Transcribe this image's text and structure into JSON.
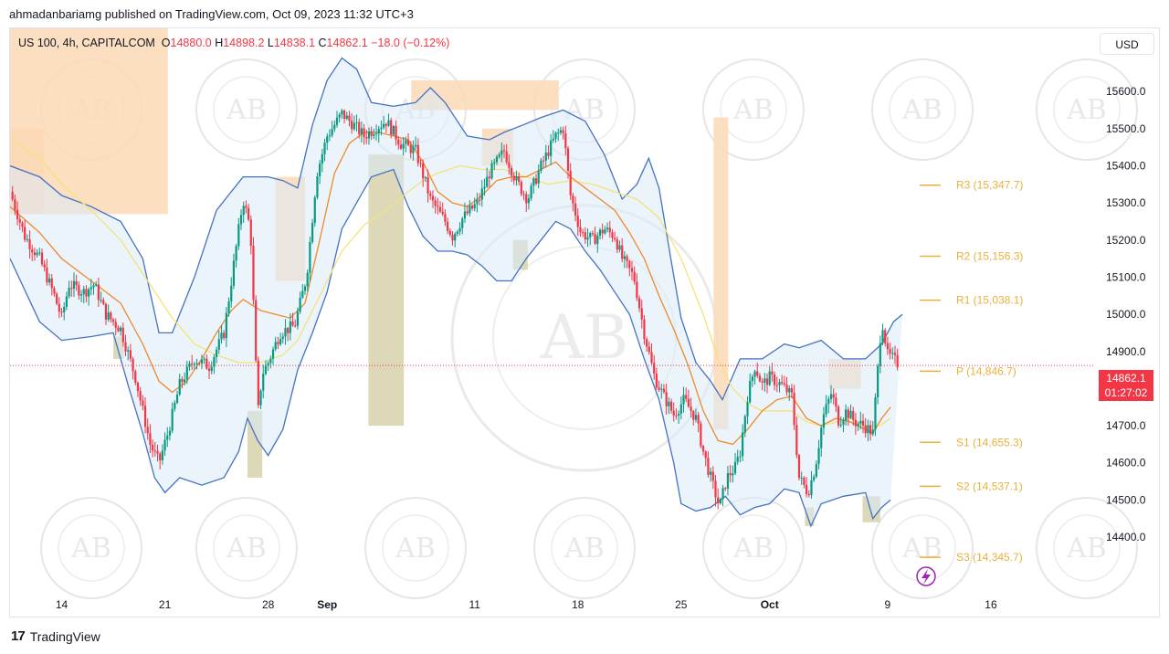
{
  "header": {
    "published_line": "ahmadanbariamg published on TradingView.com, Oct 09, 2023 11:32 UTC+3"
  },
  "symbol": {
    "name": "US 100, 4h, CAPITALCOM",
    "open_label": "O",
    "open": "14880.0",
    "high_label": "H",
    "high": "14898.2",
    "low_label": "L",
    "low": "14838.1",
    "close_label": "C",
    "close": "14862.1",
    "change": "−18.0 (−0.12%)"
  },
  "currency_button": "USD",
  "price_tag": {
    "price": "14862.1",
    "countdown": "01:27:02"
  },
  "footer": {
    "brand": "TradingView",
    "logo": "17"
  },
  "watermark": {
    "text": "AB",
    "ring_text": "ARABIAN BUSINESS ACADEMY"
  },
  "colors": {
    "up": "#089981",
    "down": "#f23645",
    "bb_line": "#4472c4",
    "bb_fill": "#dbe9f8",
    "ema_orange": "#ef8a2c",
    "ma_yellow": "#f5e27a",
    "supply_zone": "#fcd9b6",
    "demand_zone": "#d8d4b0",
    "pivot": "#e8b13c",
    "lightning": "#9c27b0"
  },
  "chart_data": {
    "type": "candlestick",
    "title": "",
    "xlabel": "",
    "ylabel": "",
    "ylim": [
      14260,
      15770
    ],
    "yticks": [
      "15600.0",
      "15500.0",
      "15400.0",
      "15300.0",
      "15200.0",
      "15100.0",
      "15000.0",
      "14900.0",
      "14800.0",
      "14700.0",
      "14600.0",
      "14500.0",
      "14400.0"
    ],
    "ytick_values": [
      15600,
      15500,
      15400,
      15300,
      15200,
      15100,
      15000,
      14900,
      14800,
      14700,
      14600,
      14500,
      14400
    ],
    "xticks": [
      {
        "label": "14",
        "day": 1
      },
      {
        "label": "21",
        "day": 8
      },
      {
        "label": "28",
        "day": 15
      },
      {
        "label": "Sep",
        "day": 19,
        "bold": true
      },
      {
        "label": "11",
        "day": 29
      },
      {
        "label": "18",
        "day": 36
      },
      {
        "label": "25",
        "day": 43
      },
      {
        "label": "Oct",
        "day": 49,
        "bold": true
      },
      {
        "label": "9",
        "day": 57
      },
      {
        "label": "16",
        "day": 64
      }
    ],
    "xlim": [
      -2.5,
      71.0
    ],
    "last_price": 14862.1,
    "pivots": [
      {
        "label": "R3 (15,347.7)",
        "value": 15347.7
      },
      {
        "label": "R2 (15,156.3)",
        "value": 15156.3
      },
      {
        "label": "R1 (15,038.1)",
        "value": 15038.1
      },
      {
        "label": "P (14,846.7)",
        "value": 14846.7
      },
      {
        "label": "S1 (14,655.3)",
        "value": 14655.3
      },
      {
        "label": "S2 (14,537.1)",
        "value": 14537.1
      },
      {
        "label": "S3 (14,345.7)",
        "value": 14345.7
      }
    ],
    "zones": [
      {
        "kind": "supply",
        "x0": -2.5,
        "x1": 8.2,
        "y0": 15270,
        "y1": 15770
      },
      {
        "kind": "supply",
        "x0": -2.5,
        "x1": -0.2,
        "y0": 15270,
        "y1": 15500
      },
      {
        "kind": "supply",
        "x0": 15.5,
        "x1": 17.5,
        "y0": 15090,
        "y1": 15370
      },
      {
        "kind": "supply",
        "x0": 24.7,
        "x1": 34.7,
        "y0": 15550,
        "y1": 15630
      },
      {
        "kind": "supply",
        "x0": 29.5,
        "x1": 31.6,
        "y0": 15400,
        "y1": 15500
      },
      {
        "kind": "supply",
        "x0": 45.2,
        "x1": 46.2,
        "y0": 14690,
        "y1": 15530
      },
      {
        "kind": "supply",
        "x0": 53.0,
        "x1": 55.2,
        "y0": 14800,
        "y1": 14880
      },
      {
        "kind": "demand",
        "x0": 4.5,
        "x1": 5.2,
        "y0": 14880,
        "y1": 14940
      },
      {
        "kind": "demand",
        "x0": 13.6,
        "x1": 14.6,
        "y0": 14560,
        "y1": 14740
      },
      {
        "kind": "demand",
        "x0": 21.8,
        "x1": 24.2,
        "y0": 14700,
        "y1": 15430
      },
      {
        "kind": "demand",
        "x0": 31.6,
        "x1": 32.6,
        "y0": 15120,
        "y1": 15200
      },
      {
        "kind": "demand",
        "x0": 51.4,
        "x1": 52.0,
        "y0": 14430,
        "y1": 14480
      },
      {
        "kind": "demand",
        "x0": 55.3,
        "x1": 56.5,
        "y0": 14440,
        "y1": 14510
      }
    ],
    "close_path": [
      [
        -2.5,
        15330
      ],
      [
        -1.5,
        15210
      ],
      [
        -0.5,
        15150
      ],
      [
        0.5,
        15050
      ],
      [
        1.0,
        14990
      ],
      [
        1.5,
        15080
      ],
      [
        2.5,
        15060
      ],
      [
        3.2,
        15080
      ],
      [
        4.0,
        15000
      ],
      [
        5.0,
        14960
      ],
      [
        6.0,
        14830
      ],
      [
        7.0,
        14650
      ],
      [
        7.6,
        14600
      ],
      [
        8.2,
        14680
      ],
      [
        9.0,
        14810
      ],
      [
        10.0,
        14880
      ],
      [
        11.0,
        14860
      ],
      [
        12.0,
        14950
      ],
      [
        13.3,
        15310
      ],
      [
        13.8,
        15230
      ],
      [
        14.3,
        14730
      ],
      [
        14.6,
        14840
      ],
      [
        15.0,
        14870
      ],
      [
        15.8,
        14950
      ],
      [
        16.8,
        14970
      ],
      [
        17.6,
        15100
      ],
      [
        18.3,
        15380
      ],
      [
        19.0,
        15480
      ],
      [
        20.0,
        15540
      ],
      [
        20.8,
        15510
      ],
      [
        21.5,
        15480
      ],
      [
        22.2,
        15500
      ],
      [
        23.0,
        15520
      ],
      [
        24.0,
        15460
      ],
      [
        25.0,
        15440
      ],
      [
        26.0,
        15310
      ],
      [
        27.0,
        15250
      ],
      [
        27.5,
        15210
      ],
      [
        28.2,
        15260
      ],
      [
        29.2,
        15300
      ],
      [
        30.0,
        15380
      ],
      [
        31.0,
        15440
      ],
      [
        31.8,
        15360
      ],
      [
        32.6,
        15310
      ],
      [
        33.5,
        15400
      ],
      [
        34.5,
        15480
      ],
      [
        35.0,
        15500
      ],
      [
        35.5,
        15320
      ],
      [
        36.2,
        15220
      ],
      [
        37.0,
        15200
      ],
      [
        37.8,
        15230
      ],
      [
        38.5,
        15210
      ],
      [
        39.0,
        15150
      ],
      [
        39.8,
        15100
      ],
      [
        40.5,
        14950
      ],
      [
        41.2,
        14830
      ],
      [
        41.8,
        14780
      ],
      [
        42.5,
        14730
      ],
      [
        43.2,
        14770
      ],
      [
        44.0,
        14720
      ],
      [
        44.5,
        14630
      ],
      [
        45.0,
        14560
      ],
      [
        45.6,
        14480
      ],
      [
        46.1,
        14560
      ],
      [
        46.7,
        14590
      ],
      [
        47.0,
        14630
      ],
      [
        47.5,
        14780
      ],
      [
        48.0,
        14860
      ],
      [
        48.5,
        14810
      ],
      [
        49.0,
        14830
      ],
      [
        49.8,
        14810
      ],
      [
        50.5,
        14780
      ],
      [
        51.0,
        14560
      ],
      [
        51.6,
        14520
      ],
      [
        52.1,
        14590
      ],
      [
        52.6,
        14720
      ],
      [
        53.2,
        14790
      ],
      [
        53.7,
        14710
      ],
      [
        54.2,
        14740
      ],
      [
        54.8,
        14710
      ],
      [
        55.4,
        14700
      ],
      [
        56.0,
        14680
      ],
      [
        56.6,
        14990
      ],
      [
        57.0,
        14890
      ],
      [
        57.4,
        14880
      ],
      [
        57.8,
        14862
      ]
    ],
    "bb_upper": [
      [
        -2.5,
        15400
      ],
      [
        -0.5,
        15370
      ],
      [
        1.0,
        15320
      ],
      [
        3.0,
        15290
      ],
      [
        5.0,
        15250
      ],
      [
        6.5,
        15150
      ],
      [
        7.6,
        14950
      ],
      [
        8.5,
        14950
      ],
      [
        10.0,
        15100
      ],
      [
        11.5,
        15280
      ],
      [
        12.5,
        15330
      ],
      [
        13.3,
        15370
      ],
      [
        15.0,
        15370
      ],
      [
        16.0,
        15360
      ],
      [
        17.0,
        15340
      ],
      [
        18.0,
        15510
      ],
      [
        19.0,
        15630
      ],
      [
        20.0,
        15690
      ],
      [
        21.0,
        15660
      ],
      [
        22.0,
        15570
      ],
      [
        23.5,
        15560
      ],
      [
        25.0,
        15570
      ],
      [
        26.0,
        15610
      ],
      [
        27.0,
        15570
      ],
      [
        28.5,
        15480
      ],
      [
        30.0,
        15470
      ],
      [
        31.0,
        15490
      ],
      [
        32.3,
        15510
      ],
      [
        33.5,
        15530
      ],
      [
        35.0,
        15550
      ],
      [
        36.5,
        15520
      ],
      [
        37.8,
        15430
      ],
      [
        39.0,
        15310
      ],
      [
        40.0,
        15350
      ],
      [
        40.8,
        15420
      ],
      [
        41.5,
        15340
      ],
      [
        42.3,
        15150
      ],
      [
        43.0,
        14990
      ],
      [
        44.0,
        14870
      ],
      [
        45.0,
        14820
      ],
      [
        45.8,
        14770
      ],
      [
        47.0,
        14880
      ],
      [
        48.5,
        14880
      ],
      [
        50.0,
        14920
      ],
      [
        51.0,
        14910
      ],
      [
        52.5,
        14930
      ],
      [
        54.0,
        14880
      ],
      [
        55.5,
        14880
      ],
      [
        56.6,
        14920
      ],
      [
        57.4,
        14980
      ],
      [
        58.0,
        15000
      ]
    ],
    "bb_lower": [
      [
        -2.5,
        15150
      ],
      [
        -0.5,
        14980
      ],
      [
        1.0,
        14930
      ],
      [
        3.0,
        14940
      ],
      [
        4.5,
        14950
      ],
      [
        5.5,
        14810
      ],
      [
        6.5,
        14680
      ],
      [
        7.3,
        14560
      ],
      [
        8.0,
        14520
      ],
      [
        9.0,
        14560
      ],
      [
        10.5,
        14540
      ],
      [
        12.0,
        14560
      ],
      [
        13.0,
        14630
      ],
      [
        13.6,
        14720
      ],
      [
        14.3,
        14660
      ],
      [
        15.0,
        14620
      ],
      [
        16.0,
        14690
      ],
      [
        17.0,
        14850
      ],
      [
        18.0,
        14950
      ],
      [
        19.0,
        15060
      ],
      [
        20.0,
        15230
      ],
      [
        21.0,
        15300
      ],
      [
        22.0,
        15370
      ],
      [
        23.5,
        15390
      ],
      [
        24.5,
        15290
      ],
      [
        25.5,
        15210
      ],
      [
        26.5,
        15170
      ],
      [
        27.5,
        15170
      ],
      [
        28.5,
        15160
      ],
      [
        29.5,
        15130
      ],
      [
        30.5,
        15090
      ],
      [
        31.5,
        15090
      ],
      [
        32.5,
        15150
      ],
      [
        33.5,
        15200
      ],
      [
        34.5,
        15250
      ],
      [
        35.5,
        15230
      ],
      [
        36.5,
        15170
      ],
      [
        37.5,
        15120
      ],
      [
        38.5,
        15060
      ],
      [
        39.5,
        15000
      ],
      [
        40.5,
        14880
      ],
      [
        41.5,
        14770
      ],
      [
        42.5,
        14600
      ],
      [
        43.0,
        14490
      ],
      [
        44.0,
        14470
      ],
      [
        45.0,
        14480
      ],
      [
        46.0,
        14510
      ],
      [
        47.0,
        14460
      ],
      [
        48.0,
        14480
      ],
      [
        49.0,
        14490
      ],
      [
        50.0,
        14530
      ],
      [
        51.0,
        14520
      ],
      [
        51.8,
        14430
      ],
      [
        52.5,
        14490
      ],
      [
        54.0,
        14510
      ],
      [
        55.5,
        14520
      ],
      [
        56.0,
        14450
      ],
      [
        56.6,
        14480
      ],
      [
        57.2,
        14500
      ]
    ],
    "ema_orange": [
      [
        -2.5,
        15290
      ],
      [
        -0.5,
        15220
      ],
      [
        1.0,
        15150
      ],
      [
        3.0,
        15090
      ],
      [
        5.0,
        15030
      ],
      [
        6.5,
        14920
      ],
      [
        7.6,
        14820
      ],
      [
        8.5,
        14790
      ],
      [
        9.5,
        14820
      ],
      [
        10.5,
        14880
      ],
      [
        11.5,
        14950
      ],
      [
        12.5,
        15010
      ],
      [
        13.3,
        15040
      ],
      [
        14.5,
        15010
      ],
      [
        15.5,
        15000
      ],
      [
        16.5,
        14990
      ],
      [
        17.5,
        15030
      ],
      [
        18.5,
        15200
      ],
      [
        19.5,
        15380
      ],
      [
        20.5,
        15460
      ],
      [
        21.5,
        15490
      ],
      [
        22.5,
        15490
      ],
      [
        23.5,
        15480
      ],
      [
        24.5,
        15470
      ],
      [
        25.5,
        15410
      ],
      [
        26.5,
        15330
      ],
      [
        27.5,
        15300
      ],
      [
        28.5,
        15290
      ],
      [
        29.5,
        15320
      ],
      [
        30.5,
        15360
      ],
      [
        31.5,
        15370
      ],
      [
        32.5,
        15370
      ],
      [
        33.5,
        15390
      ],
      [
        34.5,
        15410
      ],
      [
        35.5,
        15370
      ],
      [
        36.5,
        15340
      ],
      [
        37.5,
        15310
      ],
      [
        38.5,
        15280
      ],
      [
        39.5,
        15220
      ],
      [
        40.5,
        15150
      ],
      [
        41.5,
        15050
      ],
      [
        42.5,
        14960
      ],
      [
        43.5,
        14860
      ],
      [
        44.5,
        14740
      ],
      [
        45.5,
        14660
      ],
      [
        46.5,
        14650
      ],
      [
        47.5,
        14690
      ],
      [
        48.5,
        14740
      ],
      [
        49.5,
        14770
      ],
      [
        50.5,
        14780
      ],
      [
        51.5,
        14720
      ],
      [
        52.5,
        14700
      ],
      [
        53.5,
        14720
      ],
      [
        54.5,
        14710
      ],
      [
        55.5,
        14690
      ],
      [
        56.0,
        14680
      ],
      [
        56.6,
        14720
      ],
      [
        57.2,
        14750
      ]
    ],
    "ma_yellow": [
      [
        -2.5,
        15470
      ],
      [
        -0.5,
        15420
      ],
      [
        1.0,
        15350
      ],
      [
        3.0,
        15280
      ],
      [
        5.0,
        15200
      ],
      [
        7.0,
        15080
      ],
      [
        8.5,
        14990
      ],
      [
        10.0,
        14920
      ],
      [
        11.5,
        14890
      ],
      [
        13.0,
        14870
      ],
      [
        14.5,
        14870
      ],
      [
        16.0,
        14890
      ],
      [
        17.0,
        14930
      ],
      [
        18.5,
        15050
      ],
      [
        20.0,
        15170
      ],
      [
        21.5,
        15240
      ],
      [
        23.0,
        15280
      ],
      [
        24.5,
        15330
      ],
      [
        25.5,
        15360
      ],
      [
        26.5,
        15380
      ],
      [
        28.0,
        15400
      ],
      [
        29.5,
        15390
      ],
      [
        31.0,
        15390
      ],
      [
        32.5,
        15370
      ],
      [
        34.0,
        15350
      ],
      [
        35.5,
        15360
      ],
      [
        37.0,
        15350
      ],
      [
        38.5,
        15330
      ],
      [
        40.0,
        15310
      ],
      [
        41.5,
        15260
      ],
      [
        43.0,
        15150
      ],
      [
        44.5,
        15000
      ],
      [
        45.5,
        14880
      ],
      [
        46.5,
        14800
      ],
      [
        47.5,
        14760
      ],
      [
        48.5,
        14740
      ],
      [
        49.5,
        14740
      ],
      [
        50.5,
        14740
      ],
      [
        51.5,
        14710
      ],
      [
        52.5,
        14700
      ],
      [
        53.5,
        14710
      ],
      [
        54.5,
        14720
      ],
      [
        55.5,
        14700
      ],
      [
        56.5,
        14700
      ],
      [
        57.2,
        14720
      ]
    ]
  }
}
